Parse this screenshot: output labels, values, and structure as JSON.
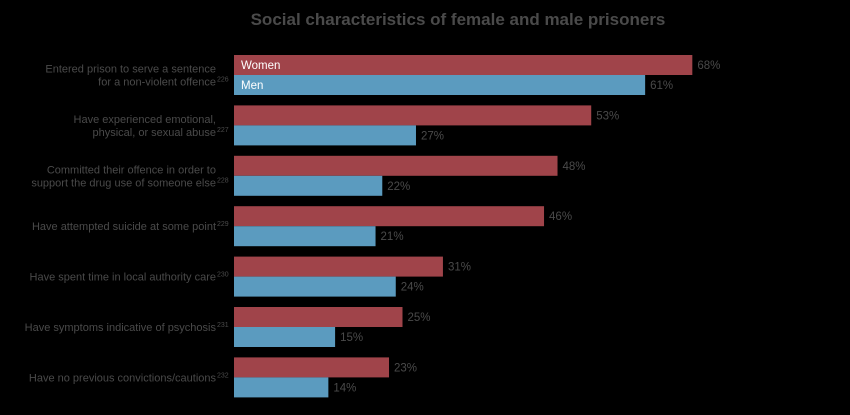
{
  "chart_data": {
    "type": "bar",
    "orientation": "horizontal",
    "title": "Social characteristics of female and male prisoners",
    "xlabel": "",
    "ylabel": "",
    "xlim": [
      0,
      100
    ],
    "grid": false,
    "legend_placement": "inside-first-bars",
    "categories": [
      {
        "label": "Entered prison to serve a sentence for a non-violent offence",
        "lines": [
          "Entered prison to serve a sentence",
          "for a non-violent offence"
        ],
        "ref": "226"
      },
      {
        "label": "Have experienced emotional, physical, or sexual abuse",
        "lines": [
          "Have experienced emotional,",
          "physical, or sexual abuse"
        ],
        "ref": "227"
      },
      {
        "label": "Committed their offence in order to support the drug use of someone else",
        "lines": [
          "Committed their offence in order to",
          "support the drug use of someone else"
        ],
        "ref": "228"
      },
      {
        "label": "Have attempted suicide at some point",
        "lines": [
          "Have attempted suicide at some point"
        ],
        "ref": "229"
      },
      {
        "label": "Have spent time in local authority care",
        "lines": [
          "Have spent time in local authority care"
        ],
        "ref": "230"
      },
      {
        "label": "Have symptoms indicative of psychosis",
        "lines": [
          "Have symptoms indicative of psychosis"
        ],
        "ref": "231"
      },
      {
        "label": "Have no previous convictions/cautions",
        "lines": [
          "Have no previous convictions/cautions"
        ],
        "ref": "232"
      }
    ],
    "series": [
      {
        "name": "Women",
        "color": "#a0444a",
        "values": [
          68,
          53,
          48,
          46,
          31,
          25,
          23
        ],
        "labels": [
          "68%",
          "53%",
          "48%",
          "46%",
          "31%",
          "25%",
          "23%"
        ]
      },
      {
        "name": "Men",
        "color": "#5b9bbf",
        "values": [
          61,
          27,
          22,
          21,
          24,
          15,
          14
        ],
        "labels": [
          "61%",
          "27%",
          "22%",
          "21%",
          "24%",
          "15%",
          "14%"
        ]
      }
    ]
  }
}
